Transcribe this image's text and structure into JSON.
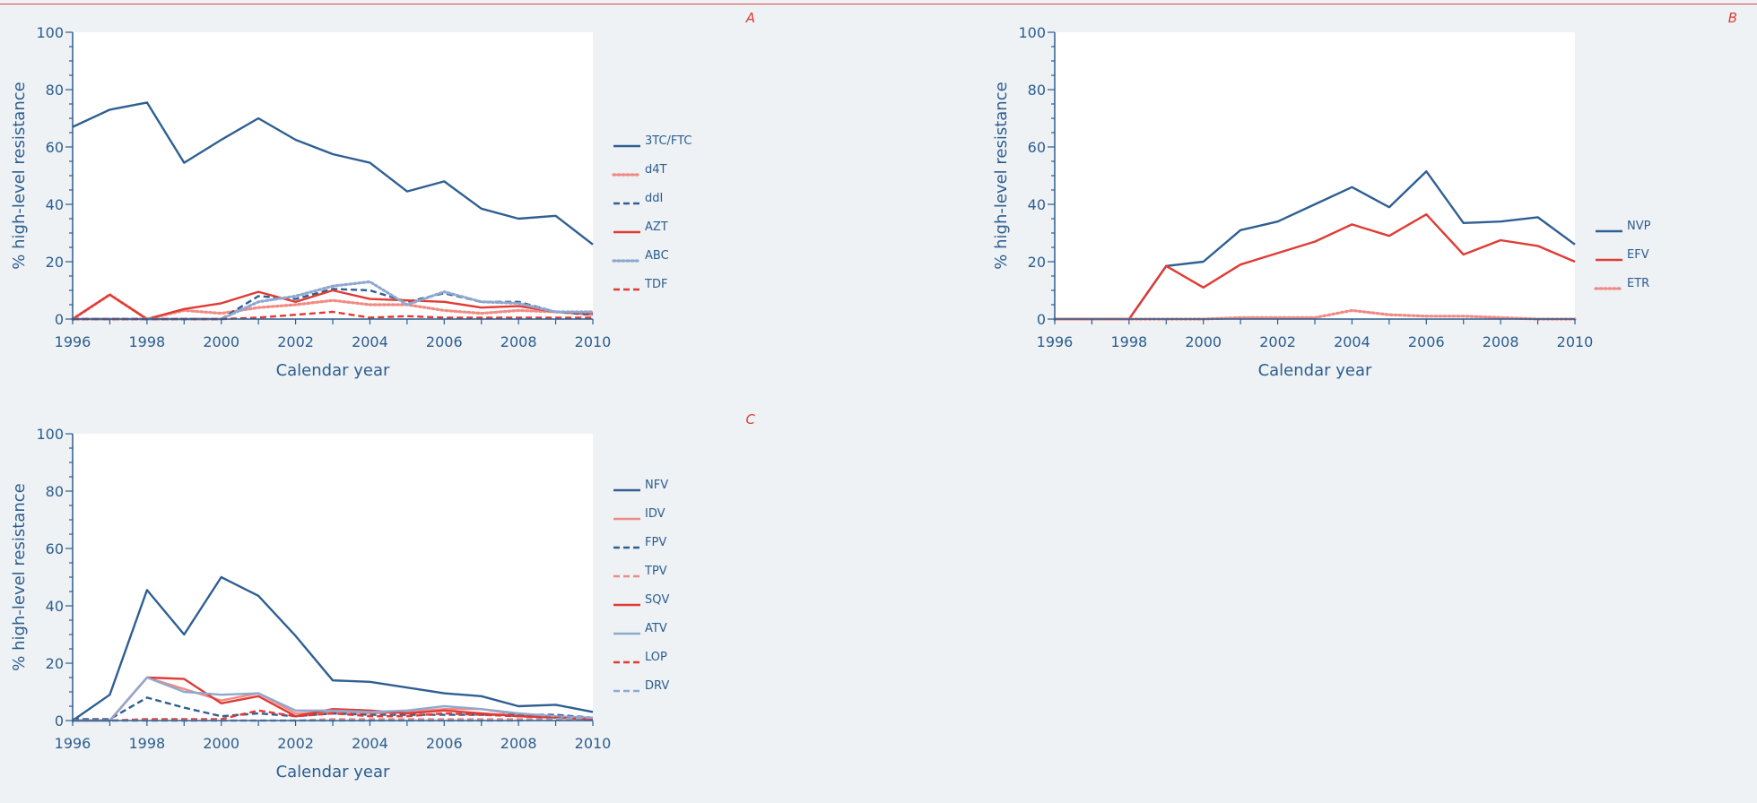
{
  "colors": {
    "axis": "#2c5d8f",
    "blue": "#2f5f92",
    "lightblue": "#8fa8cf",
    "red": "#e03b35",
    "pink": "#f08a84",
    "panel_letter": "#e03b35",
    "plot_bg": "#ffffff",
    "page_bg": "#eef2f5"
  },
  "chart_data": [
    {
      "panel": "A",
      "type": "line",
      "xlabel": "Calendar year",
      "ylabel": "% high-level resistance",
      "xlim": [
        1996,
        2010
      ],
      "ylim": [
        0,
        100
      ],
      "xticks": [
        "1996",
        "1998",
        "2000",
        "2002",
        "2004",
        "2006",
        "2008",
        "2010"
      ],
      "yticks": [
        "0",
        "20",
        "40",
        "60",
        "80",
        "100"
      ],
      "legend_position": "right",
      "x": [
        1996,
        1997,
        1998,
        1999,
        2000,
        2001,
        2002,
        2003,
        2004,
        2005,
        2006,
        2007,
        2008,
        2009,
        2010
      ],
      "series": [
        {
          "name": "3TC/FTC",
          "color": "#2f5f92",
          "dash": "solid",
          "values": [
            67,
            73,
            75.5,
            54.5,
            62.5,
            70,
            62.5,
            57.5,
            54.5,
            44.5,
            48,
            38.5,
            35,
            36,
            26
          ]
        },
        {
          "name": "d4T",
          "color": "#f08a84",
          "dash": "dotted",
          "values": [
            0,
            8.5,
            0,
            3,
            2,
            4,
            5,
            6.5,
            5,
            5,
            3,
            2,
            3,
            2.5,
            1.5
          ]
        },
        {
          "name": "ddI",
          "color": "#2f5f92",
          "dash": "dashed",
          "values": [
            0,
            0,
            0,
            0,
            0,
            8,
            7,
            10.5,
            10,
            6,
            9,
            6,
            6,
            2.5,
            1.5
          ]
        },
        {
          "name": "AZT",
          "color": "#e03b35",
          "dash": "solid",
          "values": [
            0,
            8.5,
            0,
            3.5,
            5.5,
            9.5,
            6,
            10,
            7,
            6.5,
            6,
            4,
            4.5,
            2.5,
            2
          ]
        },
        {
          "name": "ABC",
          "color": "#8fa8cf",
          "dash": "dotted",
          "values": [
            0,
            0,
            0,
            0,
            0,
            6,
            8,
            11.5,
            13,
            5,
            9.5,
            6,
            5.5,
            2.5,
            2.5
          ]
        },
        {
          "name": "TDF",
          "color": "#e03b35",
          "dash": "dashed",
          "values": [
            0,
            0,
            0,
            0,
            0,
            0.5,
            1.5,
            2.5,
            0.5,
            1,
            0.5,
            0.5,
            0.5,
            0.5,
            0.5
          ]
        }
      ]
    },
    {
      "panel": "B",
      "type": "line",
      "xlabel": "Calendar year",
      "ylabel": "% high-level resistance",
      "xlim": [
        1996,
        2010
      ],
      "ylim": [
        0,
        100
      ],
      "xticks": [
        "1996",
        "1998",
        "2000",
        "2002",
        "2004",
        "2006",
        "2008",
        "2010"
      ],
      "yticks": [
        "0",
        "20",
        "40",
        "60",
        "80",
        "100"
      ],
      "legend_position": "right",
      "x": [
        1996,
        1997,
        1998,
        1999,
        2000,
        2001,
        2002,
        2003,
        2004,
        2005,
        2006,
        2007,
        2008,
        2009,
        2010
      ],
      "series": [
        {
          "name": "NVP",
          "color": "#2f5f92",
          "dash": "solid",
          "values": [
            0,
            0,
            0,
            18.5,
            20,
            31,
            34,
            40,
            46,
            39,
            51.5,
            33.5,
            34,
            35.5,
            26
          ]
        },
        {
          "name": "EFV",
          "color": "#e03b35",
          "dash": "solid",
          "values": [
            0,
            0,
            0,
            18.5,
            11,
            19,
            23,
            27,
            33,
            29,
            36.5,
            22.5,
            27.5,
            25.5,
            20
          ]
        },
        {
          "name": "ETR",
          "color": "#f08a84",
          "dash": "dotted",
          "values": [
            0,
            0,
            0,
            0,
            0,
            0.5,
            0.5,
            0.5,
            3,
            1.5,
            1,
            1,
            0.5,
            0,
            0
          ]
        }
      ]
    },
    {
      "panel": "C",
      "type": "line",
      "xlabel": "Calendar year",
      "ylabel": "% high-level resistance",
      "xlim": [
        1996,
        2010
      ],
      "ylim": [
        0,
        100
      ],
      "xticks": [
        "1996",
        "1998",
        "2000",
        "2002",
        "2004",
        "2006",
        "2008",
        "2010"
      ],
      "yticks": [
        "0",
        "20",
        "40",
        "60",
        "80",
        "100"
      ],
      "legend_position": "right",
      "x": [
        1996,
        1997,
        1998,
        1999,
        2000,
        2001,
        2002,
        2003,
        2004,
        2005,
        2006,
        2007,
        2008,
        2009,
        2010
      ],
      "series": [
        {
          "name": "NFV",
          "color": "#2f5f92",
          "dash": "solid",
          "values": [
            0,
            9,
            45.5,
            30,
            50,
            43.5,
            29.5,
            14,
            13.5,
            11.5,
            9.5,
            8.5,
            5,
            5.5,
            3
          ]
        },
        {
          "name": "IDV",
          "color": "#f08a84",
          "dash": "solid",
          "values": [
            0,
            0,
            15,
            11,
            7,
            9.5,
            2.5,
            3,
            2.5,
            3,
            4,
            4,
            2,
            1,
            0.5
          ]
        },
        {
          "name": "FPV",
          "color": "#2f5f92",
          "dash": "dashed",
          "values": [
            0.5,
            0.5,
            8,
            4.5,
            1.5,
            2.5,
            1.5,
            2.5,
            2,
            2,
            2,
            2,
            2,
            2,
            1
          ]
        },
        {
          "name": "TPV",
          "color": "#f08a84",
          "dash": "dashed",
          "values": [
            0,
            0,
            0,
            0,
            0,
            0,
            0,
            0.5,
            0.5,
            0.5,
            0.5,
            0.5,
            0.5,
            0.5,
            0.5
          ]
        },
        {
          "name": "SQV",
          "color": "#e03b35",
          "dash": "solid",
          "values": [
            0,
            0,
            15,
            14.5,
            6,
            8.5,
            1.5,
            4,
            3.5,
            2.5,
            3.5,
            2.5,
            1.5,
            1,
            0.5
          ]
        },
        {
          "name": "ATV",
          "color": "#8fa8cf",
          "dash": "solid",
          "values": [
            0,
            0,
            15,
            10,
            9,
            9.5,
            3.5,
            3.5,
            3,
            3.5,
            5,
            4,
            2.5,
            1.5,
            1
          ]
        },
        {
          "name": "LOP",
          "color": "#e03b35",
          "dash": "dashed",
          "values": [
            0,
            0,
            0.5,
            0.5,
            0.5,
            3.5,
            1.5,
            2.5,
            1.5,
            1.5,
            2.5,
            2,
            1.5,
            1,
            0.5
          ]
        },
        {
          "name": "DRV",
          "color": "#8fa8cf",
          "dash": "dashed",
          "values": [
            0,
            0,
            0,
            0,
            0,
            0,
            0,
            0,
            0,
            0,
            0,
            0,
            0,
            0.5,
            1
          ]
        }
      ]
    }
  ]
}
